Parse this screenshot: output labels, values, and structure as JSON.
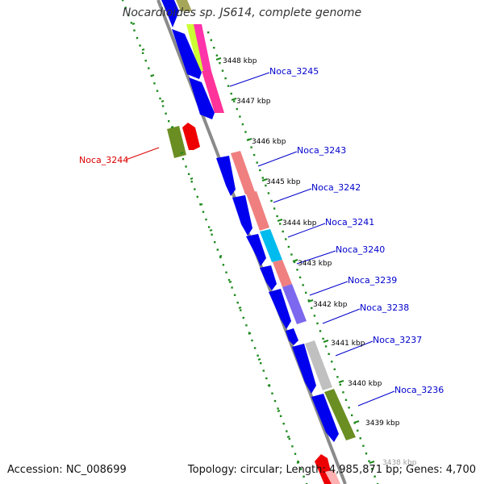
{
  "title": "Nocardioides sp. JS614, complete genome",
  "footer": {
    "accession": "Accession: NC_008699",
    "summary": "Topology: circular; Length: 4,985,871 bp; Genes: 4,700"
  },
  "colors": {
    "backbone": "#8a8a8a",
    "tick_dots": "#1f8a1f",
    "cds_blue": "#0000ee",
    "label_blue": "#0000cc",
    "label_red": "#dd0000",
    "selected_red": "#ee0000"
  },
  "ticks": [
    "3448 kbp",
    "3447 kbp",
    "3446 kbp",
    "3445 kbp",
    "3444 kbp",
    "3443 kbp",
    "3442 kbp",
    "3441 kbp",
    "3440 kbp",
    "3439 kbp",
    "3438 kbp"
  ],
  "genes": [
    {
      "name": "Noca_3245",
      "color": "#0000cc"
    },
    {
      "name": "Noca_3244",
      "color": "#dd0000"
    },
    {
      "name": "Noca_3243",
      "color": "#0000cc"
    },
    {
      "name": "Noca_3242",
      "color": "#0000cc"
    },
    {
      "name": "Noca_3241",
      "color": "#0000cc"
    },
    {
      "name": "Noca_3240",
      "color": "#0000cc"
    },
    {
      "name": "Noca_3239",
      "color": "#0000cc"
    },
    {
      "name": "Noca_3238",
      "color": "#0000cc"
    },
    {
      "name": "Noca_3237",
      "color": "#0000cc"
    },
    {
      "name": "Noca_3236",
      "color": "#0000cc"
    }
  ]
}
